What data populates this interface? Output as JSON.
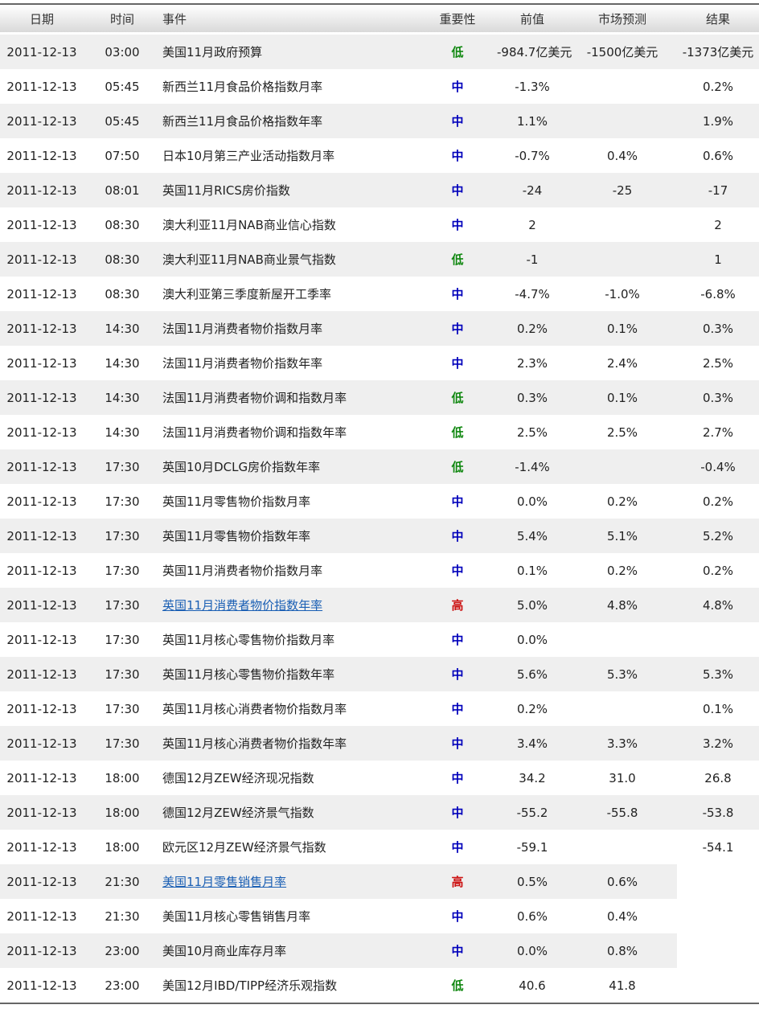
{
  "colors": {
    "low": "#118811",
    "mid": "#0000bb",
    "high": "#cc1111",
    "link": "#1a5fb4"
  },
  "headers": [
    "日期",
    "时间",
    "事件",
    "重要性",
    "前值",
    "市场预测",
    "结果"
  ],
  "rows": [
    [
      "2011-12-13",
      "03:00",
      "美国11月政府预算",
      "低",
      "-984.7亿美元",
      "-1500亿美元",
      "-1373亿美元"
    ],
    [
      "2011-12-13",
      "05:45",
      "新西兰11月食品价格指数月率",
      "中",
      "-1.3%",
      "",
      "0.2%"
    ],
    [
      "2011-12-13",
      "05:45",
      "新西兰11月食品价格指数年率",
      "中",
      "1.1%",
      "",
      "1.9%"
    ],
    [
      "2011-12-13",
      "07:50",
      "日本10月第三产业活动指数月率",
      "中",
      "-0.7%",
      "0.4%",
      "0.6%"
    ],
    [
      "2011-12-13",
      "08:01",
      "英国11月RICS房价指数",
      "中",
      "-24",
      "-25",
      "-17"
    ],
    [
      "2011-12-13",
      "08:30",
      "澳大利亚11月NAB商业信心指数",
      "中",
      "2",
      "",
      "2"
    ],
    [
      "2011-12-13",
      "08:30",
      "澳大利亚11月NAB商业景气指数",
      "低",
      "-1",
      "",
      "1"
    ],
    [
      "2011-12-13",
      "08:30",
      "澳大利亚第三季度新屋开工季率",
      "中",
      "-4.7%",
      "-1.0%",
      "-6.8%"
    ],
    [
      "2011-12-13",
      "14:30",
      "法国11月消费者物价指数月率",
      "中",
      "0.2%",
      "0.1%",
      "0.3%"
    ],
    [
      "2011-12-13",
      "14:30",
      "法国11月消费者物价指数年率",
      "中",
      "2.3%",
      "2.4%",
      "2.5%"
    ],
    [
      "2011-12-13",
      "14:30",
      "法国11月消费者物价调和指数月率",
      "低",
      "0.3%",
      "0.1%",
      "0.3%"
    ],
    [
      "2011-12-13",
      "14:30",
      "法国11月消费者物价调和指数年率",
      "低",
      "2.5%",
      "2.5%",
      "2.7%"
    ],
    [
      "2011-12-13",
      "17:30",
      "英国10月DCLG房价指数年率",
      "低",
      "-1.4%",
      "",
      "-0.4%"
    ],
    [
      "2011-12-13",
      "17:30",
      "英国11月零售物价指数月率",
      "中",
      "0.0%",
      "0.2%",
      "0.2%"
    ],
    [
      "2011-12-13",
      "17:30",
      "英国11月零售物价指数年率",
      "中",
      "5.4%",
      "5.1%",
      "5.2%"
    ],
    [
      "2011-12-13",
      "17:30",
      "英国11月消费者物价指数月率",
      "中",
      "0.1%",
      "0.2%",
      "0.2%"
    ],
    [
      "2011-12-13",
      "17:30",
      "英国11月消费者物价指数年率",
      "高",
      "5.0%",
      "4.8%",
      "4.8%"
    ],
    [
      "2011-12-13",
      "17:30",
      "英国11月核心零售物价指数月率",
      "中",
      "0.0%",
      "",
      ""
    ],
    [
      "2011-12-13",
      "17:30",
      "英国11月核心零售物价指数年率",
      "中",
      "5.6%",
      "5.3%",
      "5.3%"
    ],
    [
      "2011-12-13",
      "17:30",
      "英国11月核心消费者物价指数月率",
      "中",
      "0.2%",
      "",
      "0.1%"
    ],
    [
      "2011-12-13",
      "17:30",
      "英国11月核心消费者物价指数年率",
      "中",
      "3.4%",
      "3.3%",
      "3.2%"
    ],
    [
      "2011-12-13",
      "18:00",
      "德国12月ZEW经济现况指数",
      "中",
      "34.2",
      "31.0",
      "26.8"
    ],
    [
      "2011-12-13",
      "18:00",
      "德国12月ZEW经济景气指数",
      "中",
      "-55.2",
      "-55.8",
      "-53.8"
    ],
    [
      "2011-12-13",
      "18:00",
      "欧元区12月ZEW经济景气指数",
      "中",
      "-59.1",
      "",
      "-54.1"
    ],
    [
      "2011-12-13",
      "21:30",
      "美国11月零售销售月率",
      "高",
      "0.5%",
      "0.6%",
      null
    ],
    [
      "2011-12-13",
      "21:30",
      "美国11月核心零售销售月率",
      "中",
      "0.6%",
      "0.4%",
      null
    ],
    [
      "2011-12-13",
      "23:00",
      "美国10月商业库存月率",
      "中",
      "0.0%",
      "0.8%",
      null
    ],
    [
      "2011-12-13",
      "23:00",
      "美国12月IBD/TIPP经济乐观指数",
      "低",
      "40.6",
      "41.8",
      null
    ]
  ]
}
